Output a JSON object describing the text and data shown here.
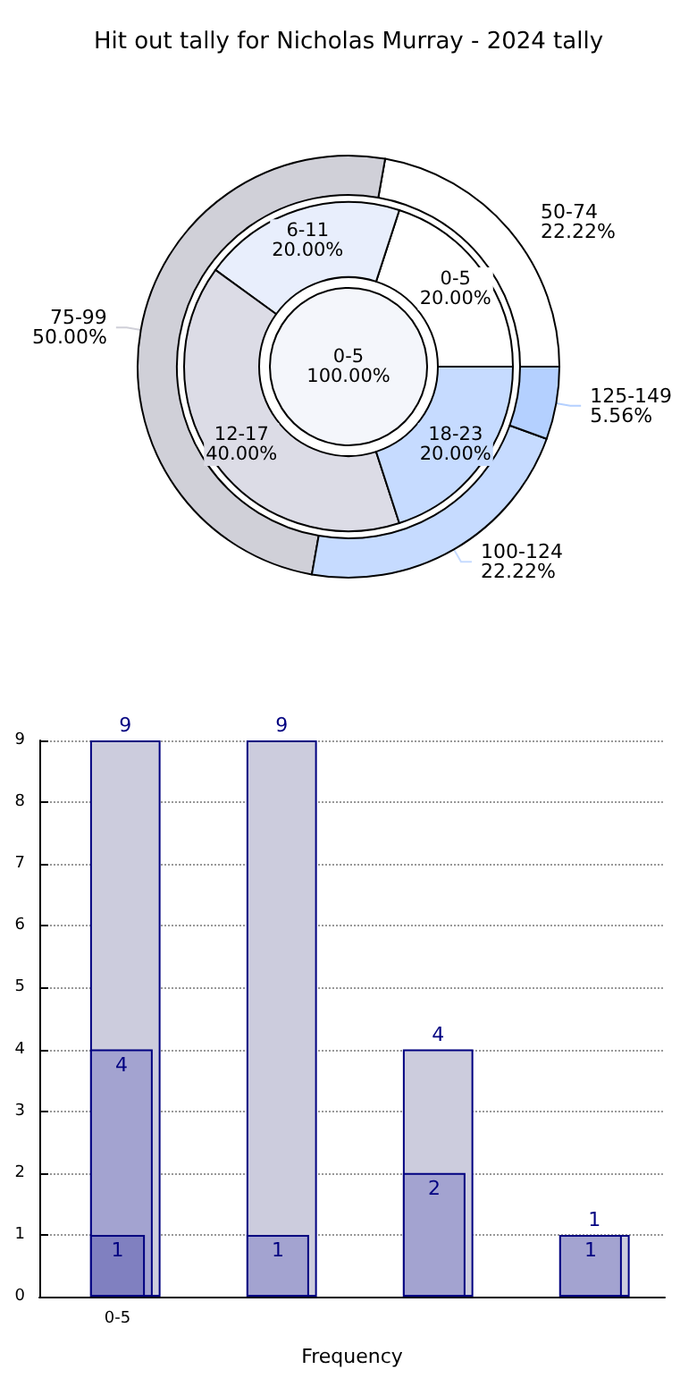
{
  "chart_data": [
    {
      "type": "pie",
      "categories": [
        "0-5"
      ],
      "values": [
        100
      ],
      "colors": [
        "#f4f6fb"
      ],
      "value_labels": [
        "100.00%"
      ]
    },
    {
      "type": "donut",
      "categories": [
        "0-5",
        "6-11",
        "12-17",
        "18-23"
      ],
      "values": [
        20,
        20,
        40,
        20
      ],
      "colors": [
        "#ffffff",
        "#e8eefc",
        "#dcdce6",
        "#c6dbff"
      ],
      "value_labels": [
        "20.00%",
        "20.00%",
        "40.00%",
        "20.00%"
      ]
    },
    {
      "type": "donut",
      "title": "Hit out tally for Nicholas Murray - 2024 tally",
      "categories": [
        "50-74",
        "75-99",
        "100-124",
        "125-149"
      ],
      "values": [
        22.22,
        50,
        22.22,
        5.56
      ],
      "colors": [
        "#ffffff",
        "#d0d0d8",
        "#c6dbff",
        "#b4d0ff"
      ],
      "value_labels": [
        "22.22%",
        "50.00%",
        "22.22%",
        "5.56%"
      ]
    },
    {
      "type": "bar",
      "xlabel": "Frequency",
      "categories": [
        "0-5",
        null,
        null,
        null
      ],
      "series": [
        {
          "color": "#ccccdd",
          "values": [
            9,
            9,
            4,
            1
          ]
        },
        {
          "color": "#a3a3d0",
          "values": [
            4,
            1,
            2,
            1
          ]
        },
        {
          "color": "#8080c0",
          "values": [
            1,
            null,
            null,
            null
          ]
        }
      ],
      "ylim": [
        0,
        9
      ],
      "yticks": [
        0,
        1,
        2,
        3,
        4,
        5,
        6,
        7,
        8,
        9
      ],
      "grid": "y",
      "data_labels": true
    }
  ]
}
